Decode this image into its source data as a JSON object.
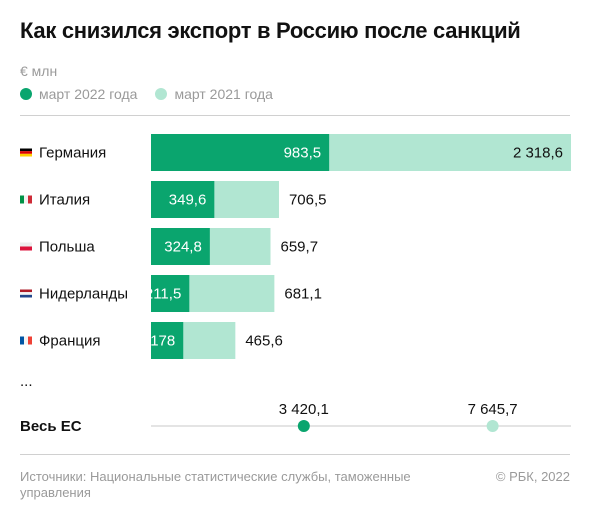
{
  "chart_data": {
    "type": "bar",
    "title": "Как снизился экспорт в Россию после санкций",
    "unit": "€ млн",
    "series": [
      {
        "name": "март 2022 года",
        "color": "#0aa56e"
      },
      {
        "name": "март 2021 года",
        "color": "#b1e6d2"
      }
    ],
    "categories": [
      {
        "name": "Германия",
        "flag": "germany-flag",
        "march_2022": 983.5,
        "march_2022_label": "983,5",
        "march_2021": 2318.6,
        "march_2021_label": "2 318,6"
      },
      {
        "name": "Италия",
        "flag": "italy-flag",
        "march_2022": 349.6,
        "march_2022_label": "349,6",
        "march_2021": 706.5,
        "march_2021_label": "706,5"
      },
      {
        "name": "Польша",
        "flag": "poland-flag",
        "march_2022": 324.8,
        "march_2022_label": "324,8",
        "march_2021": 659.7,
        "march_2021_label": "659,7"
      },
      {
        "name": "Нидерланды",
        "flag": "netherlands-flag",
        "march_2022": 211.5,
        "march_2022_label": "211,5",
        "march_2021": 681.1,
        "march_2021_label": "681,1"
      },
      {
        "name": "Франция",
        "flag": "france-flag",
        "march_2022": 178,
        "march_2022_label": "178",
        "march_2021": 465.6,
        "march_2021_label": "465,6"
      }
    ],
    "ellipsis": "...",
    "total": {
      "label": "Весь ЕС",
      "march_2022": 3420.1,
      "march_2022_label": "3 420,1",
      "march_2021": 7645.7,
      "march_2021_label": "7 645,7"
    },
    "total_xlim": [
      0,
      9400
    ]
  },
  "footer": {
    "source": "Источники: Национальные статистические службы, таможенные управления",
    "copyright": "© РБК, 2022"
  }
}
